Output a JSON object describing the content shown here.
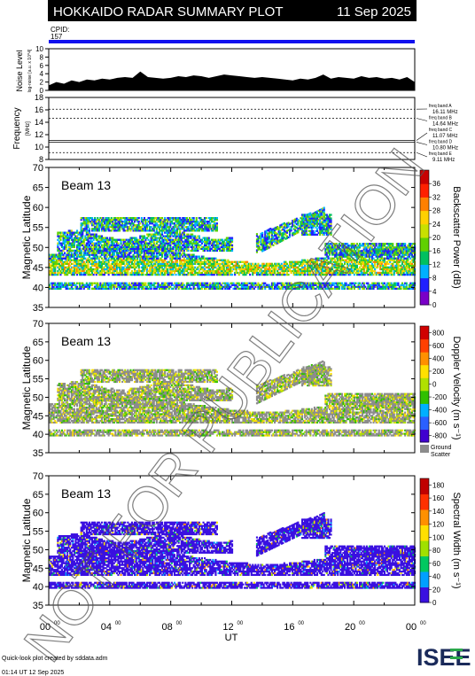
{
  "header": {
    "title": "HOKKAIDO RADAR SUMMARY PLOT",
    "date": "11 Sep 2025",
    "cpid_label": "CPID:",
    "cpid_value": "157"
  },
  "watermark": "NOT FOR PUBLICATION",
  "footer": {
    "credit": "Quick-look plot created by sddata.adm",
    "created": "01:14 UT 12 Sep 2025",
    "logo_text": "ISEE"
  },
  "colors": {
    "cpid_bar": "#1010ee",
    "ground_scatter": "#8c8c8c",
    "power_scale": [
      "#7a00c8",
      "#2020ff",
      "#00b0ff",
      "#00c060",
      "#60d000",
      "#c8e000",
      "#ffd000",
      "#ff8000",
      "#ff2000",
      "#c80000"
    ],
    "velocity_scale": [
      "#4000d0",
      "#2a60ff",
      "#00b0ff",
      "#30c000",
      "#b0e000",
      "#ffe000",
      "#ff9000",
      "#ff4000",
      "#d00000"
    ],
    "width_scale": [
      "#3a10e0",
      "#00a0ff",
      "#00c860",
      "#a0e000",
      "#ffe000",
      "#ff9000",
      "#ff3000",
      "#c00000"
    ]
  },
  "chart_data": [
    {
      "type": "area",
      "panel": "noise",
      "ylabel": "Noise Level",
      "ylabel_unit": "log-noise [a.u. x 10^4]",
      "ylim": [
        0,
        10
      ],
      "yticks": [
        0,
        2,
        4,
        6,
        8,
        10
      ],
      "x": [
        0,
        0.5,
        1,
        1.5,
        2,
        2.5,
        3,
        3.5,
        4,
        4.5,
        5,
        5.5,
        6,
        6.5,
        7,
        7.5,
        8,
        8.5,
        9,
        9.5,
        10,
        10.5,
        11,
        11.5,
        12,
        12.5,
        13,
        13.5,
        14,
        14.5,
        15,
        15.5,
        16,
        16.5,
        17,
        17.5,
        18,
        18.5,
        19,
        19.5,
        20,
        20.5,
        21,
        21.5,
        22,
        22.5,
        23,
        23.5,
        24
      ],
      "values": [
        1.2,
        2.0,
        1.6,
        2.4,
        2.0,
        2.6,
        2.4,
        2.8,
        2.6,
        3.0,
        3.2,
        3.0,
        4.5,
        3.2,
        3.0,
        2.8,
        3.0,
        3.4,
        3.2,
        3.6,
        3.4,
        3.0,
        3.4,
        3.8,
        3.6,
        3.4,
        3.2,
        3.0,
        3.2,
        3.0,
        2.8,
        2.6,
        2.4,
        2.8,
        2.6,
        3.0,
        3.8,
        2.8,
        3.2,
        3.0,
        2.8,
        3.4,
        3.0,
        3.2,
        2.8,
        3.0,
        2.6,
        3.2,
        2.0
      ]
    },
    {
      "type": "line",
      "panel": "frequency",
      "ylabel": "Frequency",
      "ylabel_unit": "[MHz]",
      "ylim": [
        8,
        18
      ],
      "yticks": [
        8,
        10,
        12,
        14,
        16,
        18
      ],
      "series": [
        {
          "name": "freq band A",
          "value_label": "16.11 MHz",
          "y": 16.11
        },
        {
          "name": "freq band B",
          "value_label": "14.64 MHz",
          "y": 14.64
        },
        {
          "name": "freq band C",
          "value_label": "11.07 MHz",
          "y": 11.07
        },
        {
          "name": "freq band D",
          "value_label": "10.80 MHz",
          "y": 10.8
        },
        {
          "name": "freq band E",
          "value_label": "9.11 MHz",
          "y": 9.11
        }
      ]
    },
    {
      "type": "heatmap",
      "panel": "power",
      "beam_label": "Beam 13",
      "ylabel": "Magnetic Latitude",
      "ylim": [
        35,
        70
      ],
      "yticks": [
        35,
        40,
        45,
        50,
        55,
        60,
        65,
        70
      ],
      "colorbar_label": "Backscatter Power (dB)",
      "colorbar_ticks": [
        0,
        4,
        8,
        12,
        16,
        20,
        24,
        28,
        32,
        36
      ],
      "colorbar_range": [
        0,
        40
      ]
    },
    {
      "type": "heatmap",
      "panel": "velocity",
      "beam_label": "Beam 13",
      "ylabel": "Magnetic Latitude",
      "ylim": [
        35,
        70
      ],
      "yticks": [
        35,
        40,
        45,
        50,
        55,
        60,
        65,
        70
      ],
      "colorbar_label": "Doppler Velocity (m s⁻¹)",
      "colorbar_ticks": [
        -800,
        -600,
        -400,
        -200,
        0,
        200,
        400,
        600,
        800
      ],
      "colorbar_range": [
        -900,
        900
      ],
      "gs_label_1": "Ground",
      "gs_label_2": "Scatter"
    },
    {
      "type": "heatmap",
      "panel": "width",
      "beam_label": "Beam 13",
      "ylabel": "Magnetic Latitude",
      "ylim": [
        35,
        70
      ],
      "yticks": [
        35,
        40,
        45,
        50,
        55,
        60,
        65,
        70
      ],
      "colorbar_label": "Spectral Width (m s⁻¹)",
      "colorbar_ticks": [
        0,
        20,
        40,
        60,
        80,
        100,
        120,
        140,
        160,
        180
      ],
      "colorbar_range": [
        0,
        190
      ],
      "xlabel": "UT",
      "xlim": [
        0,
        24
      ],
      "xtick_labels": [
        "00",
        "04",
        "08",
        "12",
        "16",
        "20",
        "00"
      ],
      "xtick_sup": "00"
    }
  ]
}
